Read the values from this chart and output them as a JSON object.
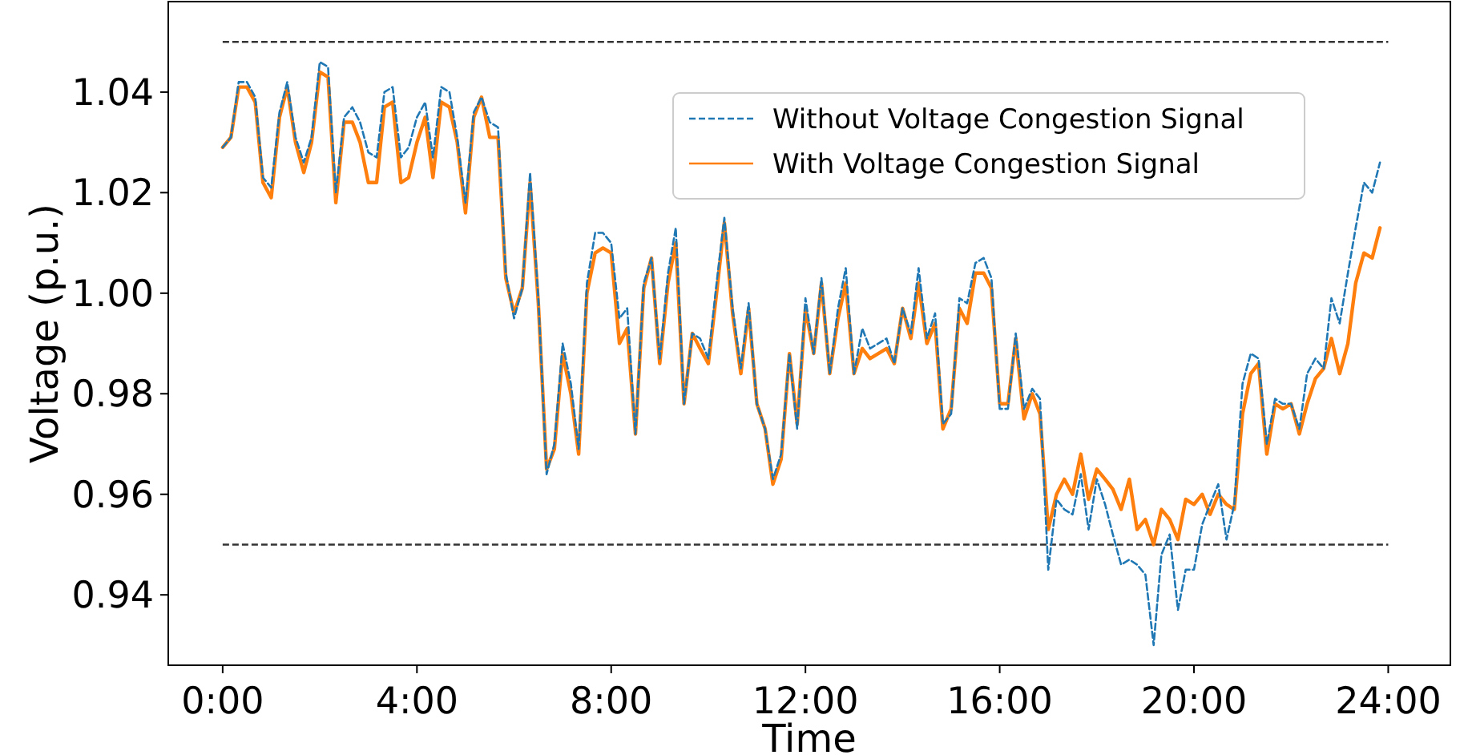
{
  "chart_data": {
    "type": "line",
    "xlabel": "Time",
    "ylabel": "Voltage (p.u.)",
    "x": [
      0,
      0.17,
      0.33,
      0.5,
      0.67,
      0.83,
      1,
      1.17,
      1.33,
      1.5,
      1.67,
      1.83,
      2,
      2.17,
      2.33,
      2.5,
      2.67,
      2.83,
      3,
      3.17,
      3.33,
      3.5,
      3.67,
      3.83,
      4,
      4.17,
      4.33,
      4.5,
      4.67,
      4.83,
      5,
      5.17,
      5.33,
      5.5,
      5.67,
      5.83,
      6,
      6.17,
      6.33,
      6.5,
      6.67,
      6.83,
      7,
      7.17,
      7.33,
      7.5,
      7.67,
      7.83,
      8,
      8.17,
      8.33,
      8.5,
      8.67,
      8.83,
      9,
      9.17,
      9.33,
      9.5,
      9.67,
      9.83,
      10,
      10.17,
      10.33,
      10.5,
      10.67,
      10.83,
      11,
      11.17,
      11.33,
      11.5,
      11.67,
      11.83,
      12,
      12.17,
      12.33,
      12.5,
      12.67,
      12.83,
      13,
      13.17,
      13.33,
      13.5,
      13.67,
      13.83,
      14,
      14.17,
      14.33,
      14.5,
      14.67,
      14.83,
      15,
      15.17,
      15.33,
      15.5,
      15.67,
      15.83,
      16,
      16.17,
      16.33,
      16.5,
      16.67,
      16.83,
      17,
      17.17,
      17.33,
      17.5,
      17.67,
      17.83,
      18,
      18.17,
      18.33,
      18.5,
      18.67,
      18.83,
      19,
      19.17,
      19.33,
      19.5,
      19.67,
      19.83,
      20,
      20.17,
      20.33,
      20.5,
      20.67,
      20.83,
      21,
      21.17,
      21.33,
      21.5,
      21.67,
      21.83,
      22,
      22.17,
      22.33,
      22.5,
      22.67,
      22.83,
      23,
      23.17,
      23.33,
      23.5,
      23.67,
      23.83
    ],
    "series": [
      {
        "name": "Without Voltage Congestion Signal",
        "color": "#1f77b4",
        "line_style": "dashed",
        "values": [
          1.029,
          1.031,
          1.042,
          1.042,
          1.039,
          1.023,
          1.021,
          1.036,
          1.042,
          1.031,
          1.026,
          1.031,
          1.046,
          1.045,
          1.02,
          1.035,
          1.037,
          1.034,
          1.028,
          1.027,
          1.04,
          1.041,
          1.027,
          1.029,
          1.035,
          1.038,
          1.027,
          1.041,
          1.04,
          1.031,
          1.018,
          1.036,
          1.039,
          1.034,
          1.033,
          1.004,
          0.995,
          1.001,
          1.024,
          0.999,
          0.964,
          0.97,
          0.99,
          0.982,
          0.969,
          1.002,
          1.012,
          1.012,
          1.01,
          0.995,
          0.997,
          0.972,
          1.002,
          1.007,
          0.987,
          1.004,
          1.013,
          0.978,
          0.992,
          0.991,
          0.987,
          1.002,
          1.015,
          0.997,
          0.985,
          0.998,
          0.978,
          0.973,
          0.963,
          0.968,
          0.988,
          0.973,
          0.999,
          0.988,
          1.003,
          0.984,
          0.997,
          1.005,
          0.984,
          0.993,
          0.989,
          0.99,
          0.991,
          0.986,
          0.997,
          0.992,
          1.005,
          0.991,
          0.996,
          0.974,
          0.976,
          0.999,
          0.998,
          1.006,
          1.007,
          1.003,
          0.977,
          0.977,
          0.992,
          0.977,
          0.981,
          0.979,
          0.945,
          0.959,
          0.957,
          0.956,
          0.964,
          0.953,
          0.963,
          0.958,
          0.952,
          0.946,
          0.947,
          0.946,
          0.944,
          0.93,
          0.948,
          0.952,
          0.937,
          0.945,
          0.945,
          0.954,
          0.958,
          0.962,
          0.951,
          0.958,
          0.982,
          0.988,
          0.987,
          0.97,
          0.979,
          0.978,
          0.978,
          0.973,
          0.984,
          0.987,
          0.985,
          0.999,
          0.994,
          1.004,
          1.013,
          1.022,
          1.02,
          1.026
        ]
      },
      {
        "name": "With Voltage Congestion Signal",
        "color": "#ff7f0e",
        "line_style": "solid",
        "values": [
          1.029,
          1.031,
          1.041,
          1.041,
          1.038,
          1.022,
          1.019,
          1.035,
          1.041,
          1.03,
          1.024,
          1.03,
          1.044,
          1.043,
          1.018,
          1.034,
          1.034,
          1.03,
          1.022,
          1.022,
          1.037,
          1.038,
          1.022,
          1.023,
          1.03,
          1.035,
          1.023,
          1.038,
          1.037,
          1.03,
          1.016,
          1.035,
          1.039,
          1.031,
          1.031,
          1.003,
          0.996,
          1.001,
          1.022,
          0.998,
          0.965,
          0.969,
          0.988,
          0.98,
          0.968,
          1.0,
          1.008,
          1.009,
          1.008,
          0.99,
          0.993,
          0.972,
          1.001,
          1.007,
          0.986,
          1.002,
          1.01,
          0.978,
          0.992,
          0.989,
          0.986,
          1.0,
          1.014,
          0.996,
          0.984,
          0.997,
          0.978,
          0.973,
          0.962,
          0.967,
          0.988,
          0.974,
          0.997,
          0.988,
          1.002,
          0.984,
          0.995,
          1.002,
          0.984,
          0.989,
          0.987,
          0.988,
          0.989,
          0.986,
          0.997,
          0.991,
          1.002,
          0.99,
          0.994,
          0.973,
          0.977,
          0.997,
          0.994,
          1.004,
          1.004,
          1.001,
          0.978,
          0.978,
          0.991,
          0.975,
          0.98,
          0.976,
          0.953,
          0.96,
          0.963,
          0.96,
          0.968,
          0.959,
          0.965,
          0.963,
          0.961,
          0.957,
          0.963,
          0.953,
          0.955,
          0.95,
          0.957,
          0.955,
          0.951,
          0.959,
          0.958,
          0.96,
          0.956,
          0.96,
          0.958,
          0.957,
          0.976,
          0.984,
          0.986,
          0.968,
          0.978,
          0.977,
          0.978,
          0.972,
          0.978,
          0.983,
          0.985,
          0.991,
          0.984,
          0.99,
          1.002,
          1.008,
          1.007,
          1.013
        ]
      }
    ],
    "ref_lines": [
      {
        "axis": "y",
        "value": 1.05,
        "color": "#333333",
        "line_style": "dashed"
      },
      {
        "axis": "y",
        "value": 0.95,
        "color": "#333333",
        "line_style": "dashed"
      }
    ],
    "xlim": [
      -1.12,
      25.28
    ],
    "xticks": [
      {
        "value": 0,
        "label": "0:00"
      },
      {
        "value": 4,
        "label": "4:00"
      },
      {
        "value": 8,
        "label": "8:00"
      },
      {
        "value": 12,
        "label": "12:00"
      },
      {
        "value": 16,
        "label": "16:00"
      },
      {
        "value": 20,
        "label": "20:00"
      },
      {
        "value": 24,
        "label": "24:00"
      }
    ],
    "ylim": [
      0.926,
      1.058
    ],
    "yticks": [
      {
        "value": 0.94,
        "label": "0.94"
      },
      {
        "value": 0.96,
        "label": "0.96"
      },
      {
        "value": 0.98,
        "label": "0.98"
      },
      {
        "value": 1.0,
        "label": "1.00"
      },
      {
        "value": 1.02,
        "label": "1.02"
      },
      {
        "value": 1.04,
        "label": "1.04"
      }
    ],
    "legend": "top right",
    "grid": false
  }
}
